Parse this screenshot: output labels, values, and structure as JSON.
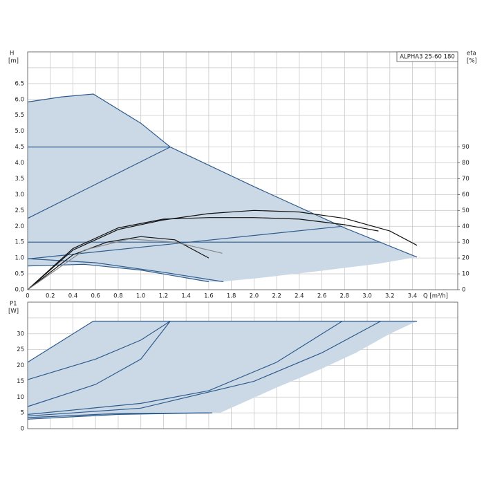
{
  "chart_data": [
    {
      "type": "line",
      "title": "ALPHA3 25-60 180",
      "y_label": "H",
      "y_unit": "[m]",
      "y2_label": "eta",
      "y2_unit": "[%]",
      "x_label": "Q [m³/h]",
      "xlim": [
        0,
        3.8
      ],
      "xticks": [
        0,
        0.2,
        0.4,
        0.6,
        0.8,
        {
          "value": 1,
          "label": "1.0"
        },
        1.2,
        1.4,
        1.6,
        1.8,
        {
          "value": 2,
          "label": "2.0"
        },
        2.2,
        2.4,
        2.6,
        2.8,
        {
          "value": 3,
          "label": "3.0"
        },
        3.2,
        3.4
      ],
      "xgrid": [
        3.6,
        3.8
      ],
      "ylim": [
        0,
        7.5
      ],
      "yticks": [
        {
          "value": 0,
          "label": "0.0"
        },
        0.5,
        {
          "value": 1,
          "label": "1.0"
        },
        1.5,
        {
          "value": 2,
          "label": "2.0"
        },
        2.5,
        {
          "value": 3,
          "label": "3.0"
        },
        3.5,
        {
          "value": 4,
          "label": "4.0"
        },
        4.5,
        {
          "value": 5,
          "label": "5.0"
        },
        5.5,
        {
          "value": 6,
          "label": "6.0"
        },
        6.5
      ],
      "ygrid": [
        7,
        7.5
      ],
      "y2lim": [
        0,
        150
      ],
      "y2ticks": [
        0,
        10,
        20,
        30,
        40,
        50,
        60,
        70,
        80,
        90
      ],
      "series": [
        {
          "fill": "#cbd9e7",
          "x": [
            0,
            0.3,
            0.58,
            1.0,
            1.26,
            2.0,
            2.8,
            3.44,
            3.1,
            2.6,
            2.0,
            1.7,
            1.6,
            1.0,
            0.5,
            0,
            0
          ],
          "y": [
            5.92,
            6.08,
            6.17,
            5.25,
            4.5,
            3.25,
            1.95,
            1.03,
            0.82,
            0.6,
            0.35,
            0.25,
            0.25,
            0.62,
            0.8,
            0.75,
            5.92
          ]
        },
        {
          "color": "#2e5b8c",
          "x": [
            0,
            0.3,
            0.58,
            1.0,
            1.26,
            2.0,
            2.8,
            3.44
          ],
          "y": [
            5.92,
            6.08,
            6.17,
            5.25,
            4.5,
            3.25,
            1.95,
            1.03
          ]
        },
        {
          "color": "#2e5b8c",
          "x": [
            0,
            1.26
          ],
          "y": [
            4.5,
            4.5
          ]
        },
        {
          "color": "#2e5b8c",
          "x": [
            0,
            1.26
          ],
          "y": [
            2.25,
            4.5
          ]
        },
        {
          "color": "#2e5b8c",
          "x": [
            0,
            3.12
          ],
          "y": [
            1.5,
            1.5
          ]
        },
        {
          "color": "#2e5b8c",
          "x": [
            0,
            2.78
          ],
          "y": [
            0.97,
            2.0
          ]
        },
        {
          "color": "#2e5b8c",
          "x": [
            0,
            0.5,
            1.0,
            1.6
          ],
          "y": [
            0.75,
            0.8,
            0.62,
            0.25
          ]
        },
        {
          "color": "#2e5b8c",
          "x": [
            0,
            0.6,
            1.2,
            1.73
          ],
          "y": [
            0.98,
            0.85,
            0.55,
            0.25
          ]
        },
        {
          "color": "#111111",
          "axis": "y2",
          "x": [
            0,
            0.4,
            0.8,
            1.2,
            1.6,
            2.0,
            2.4,
            2.8,
            3.2,
            3.44
          ],
          "y": [
            0,
            25,
            38,
            44,
            48,
            50,
            49,
            45,
            37,
            28
          ]
        },
        {
          "color": "#111111",
          "axis": "y2",
          "x": [
            0,
            0.4,
            0.8,
            1.2,
            1.6,
            2.0,
            2.4,
            2.8,
            3.1
          ],
          "y": [
            0,
            26,
            39,
            44.5,
            45.5,
            45.5,
            44.5,
            41,
            37
          ]
        },
        {
          "color": "#111111",
          "axis": "y2",
          "x": [
            0,
            0.4,
            0.7,
            1.0,
            1.3,
            1.6
          ],
          "y": [
            0,
            22,
            30,
            33.5,
            31.5,
            20
          ]
        },
        {
          "color": "#888888",
          "axis": "y2",
          "x": [
            0,
            0.5,
            0.9,
            1.3,
            1.72
          ],
          "y": [
            0,
            25,
            32,
            30,
            23
          ]
        }
      ]
    },
    {
      "type": "line",
      "y_label": "P1",
      "y_unit": "[W]",
      "xlim": [
        0,
        3.8
      ],
      "xgrid": [
        0,
        0.2,
        0.4,
        0.6,
        0.8,
        1.0,
        1.2,
        1.4,
        1.6,
        1.8,
        2.0,
        2.2,
        2.4,
        2.6,
        2.8,
        3.0,
        3.2,
        3.4,
        3.6,
        3.8
      ],
      "ylim": [
        0,
        40
      ],
      "yticks": [
        0,
        5,
        10,
        15,
        20,
        25,
        30
      ],
      "ygrid": [
        35,
        40
      ],
      "series": [
        {
          "fill": "#cbd9e7",
          "x": [
            0,
            0.58,
            3.44,
            3.2,
            2.9,
            2.6,
            2.2,
            1.7,
            1.5,
            0.8,
            0,
            0
          ],
          "y": [
            21,
            34,
            34,
            30,
            24,
            19,
            13,
            5,
            5,
            4.6,
            3,
            21
          ]
        },
        {
          "color": "#2e5b8c",
          "x": [
            0,
            0.58,
            3.44
          ],
          "y": [
            21,
            34,
            34
          ]
        },
        {
          "color": "#2e5b8c",
          "x": [
            0,
            0.6,
            1.0,
            1.26
          ],
          "y": [
            15.5,
            22,
            28,
            34
          ]
        },
        {
          "color": "#2e5b8c",
          "x": [
            0,
            0.6,
            1.0,
            1.26
          ],
          "y": [
            7,
            14,
            22,
            34
          ]
        },
        {
          "color": "#2e5b8c",
          "x": [
            0,
            1.0,
            1.6,
            2.2,
            2.78
          ],
          "y": [
            4.5,
            8,
            12,
            21,
            34
          ]
        },
        {
          "color": "#2e5b8c",
          "x": [
            0,
            1.0,
            2.0,
            2.6,
            3.12
          ],
          "y": [
            4,
            6.5,
            15,
            24,
            34
          ]
        },
        {
          "color": "#2e5b8c",
          "x": [
            0,
            0.8,
            1.6
          ],
          "y": [
            3,
            4.5,
            5
          ]
        },
        {
          "color": "#2e5b8c",
          "x": [
            0,
            0.8,
            1.63
          ],
          "y": [
            3.5,
            4.8,
            5
          ]
        }
      ]
    }
  ]
}
